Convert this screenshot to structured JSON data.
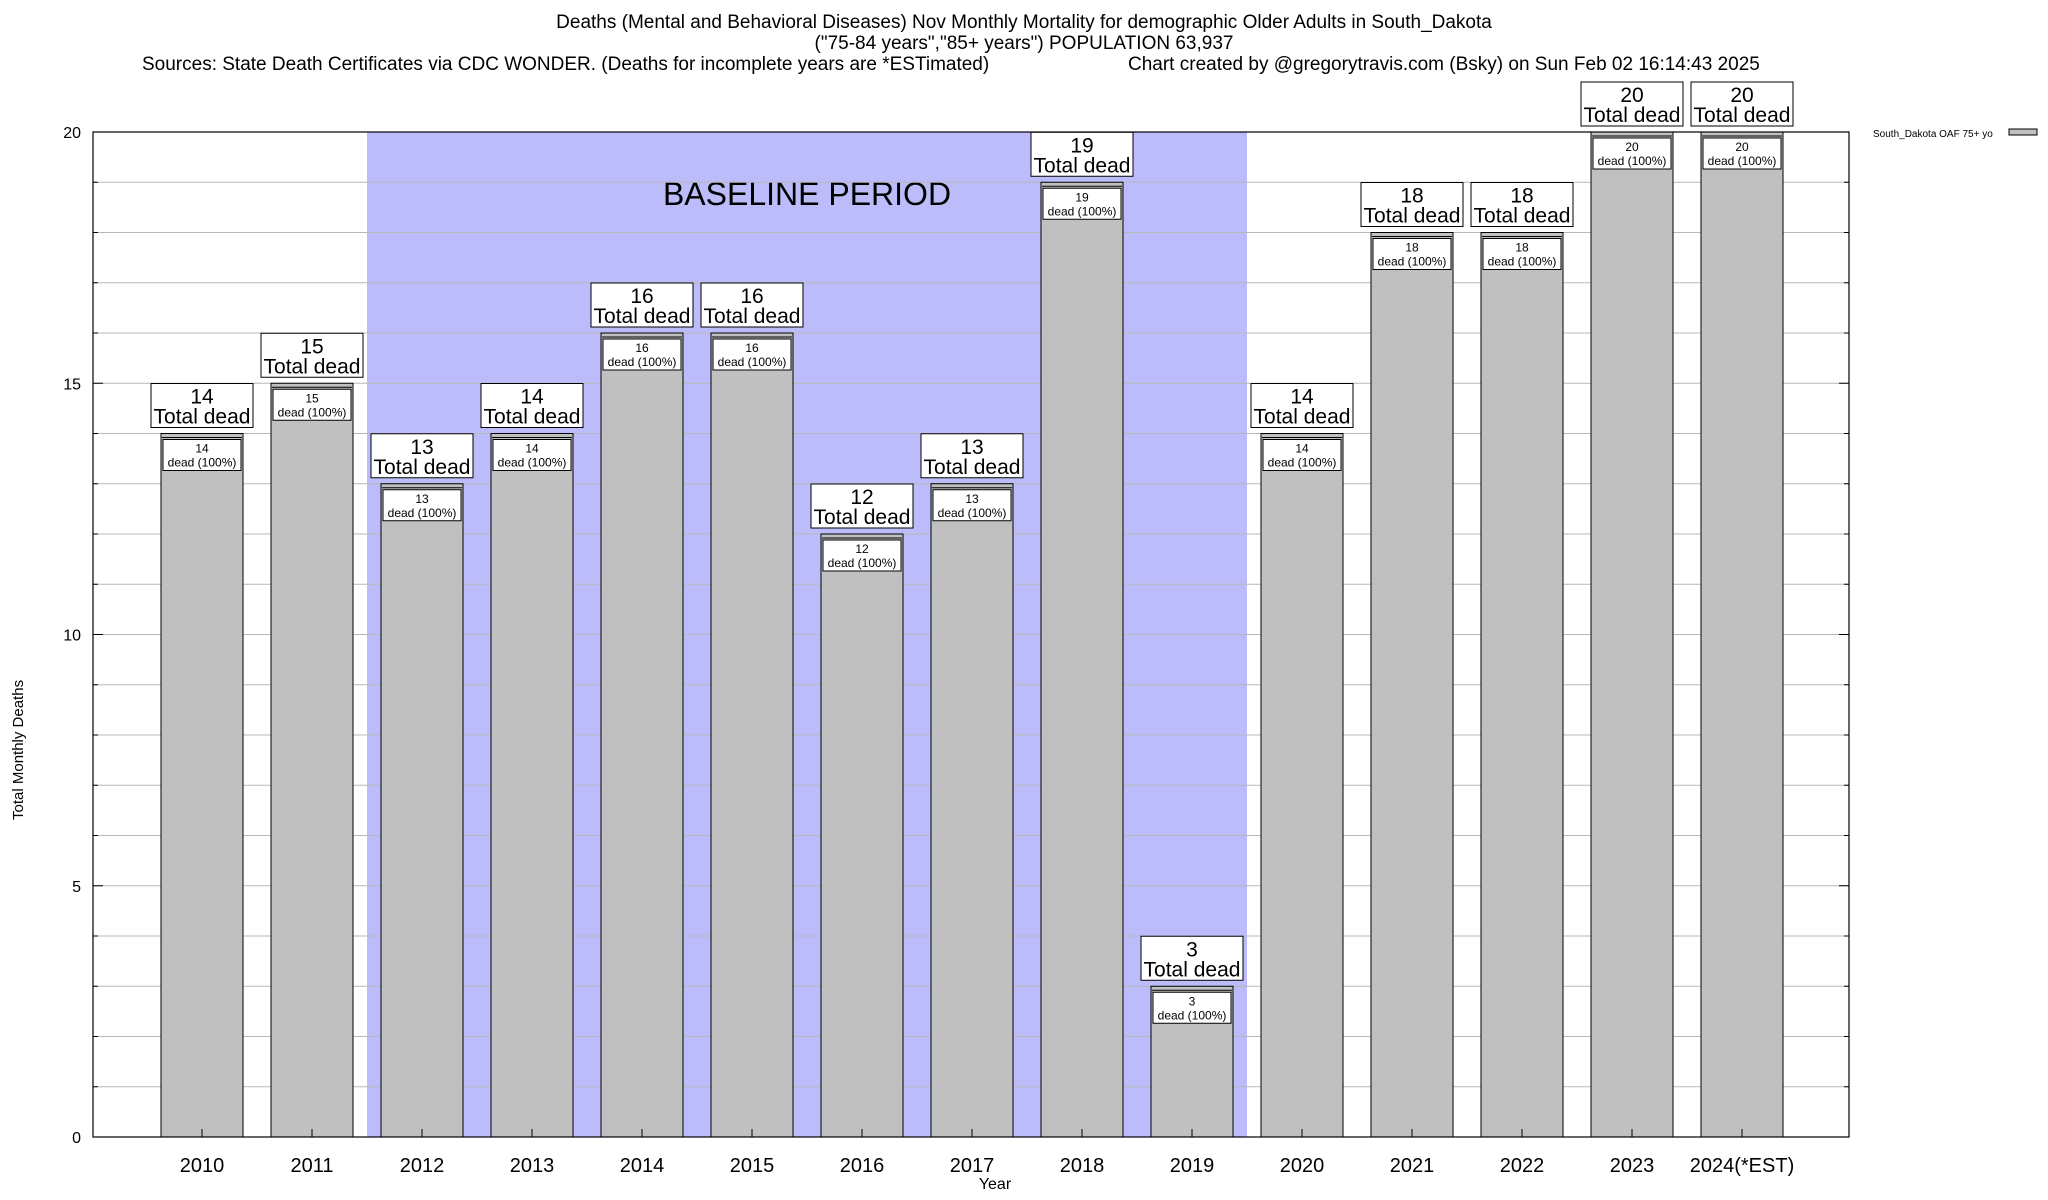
{
  "title": {
    "line1": "Deaths (Mental and Behavioral Diseases) Nov Monthly Mortality for demographic Older Adults in South_Dakota",
    "line2": "(\"75-84 years\",\"85+ years\") POPULATION 63,937",
    "source_left": "Sources: State Death Certificates via CDC WONDER. (Deaths for incomplete years are *ESTimated)",
    "source_right": "Chart created by @gregorytravis.com (Bsky) on Sun Feb 02 16:14:43 2025"
  },
  "chart_data": {
    "type": "bar",
    "title": "Deaths (Mental and Behavioral Diseases) Nov Monthly Mortality for demographic Older Adults in South_Dakota",
    "xlabel": "Year",
    "ylabel": "Total Monthly Deaths",
    "ylim": [
      0,
      20
    ],
    "yticks": [
      0,
      5,
      10,
      15,
      20
    ],
    "grid": true,
    "legend_position": "top-right",
    "categories": [
      "2010",
      "2011",
      "2012",
      "2013",
      "2014",
      "2015",
      "2016",
      "2017",
      "2018",
      "2019",
      "2020",
      "2021",
      "2022",
      "2023",
      "2024(*EST)"
    ],
    "series": [
      {
        "name": "South_Dakota OAF 75+ yo",
        "color": "#c0c0c0",
        "values": [
          14,
          15,
          13,
          14,
          16,
          16,
          12,
          13,
          19,
          3,
          14,
          18,
          18,
          20,
          20
        ]
      }
    ],
    "total_label_text": "Total dead",
    "inner_label_text": "dead (100%)",
    "baseline": {
      "label": "BASELINE PERIOD",
      "start": "2012",
      "end": "2019",
      "color": "#bcbcfa"
    }
  }
}
